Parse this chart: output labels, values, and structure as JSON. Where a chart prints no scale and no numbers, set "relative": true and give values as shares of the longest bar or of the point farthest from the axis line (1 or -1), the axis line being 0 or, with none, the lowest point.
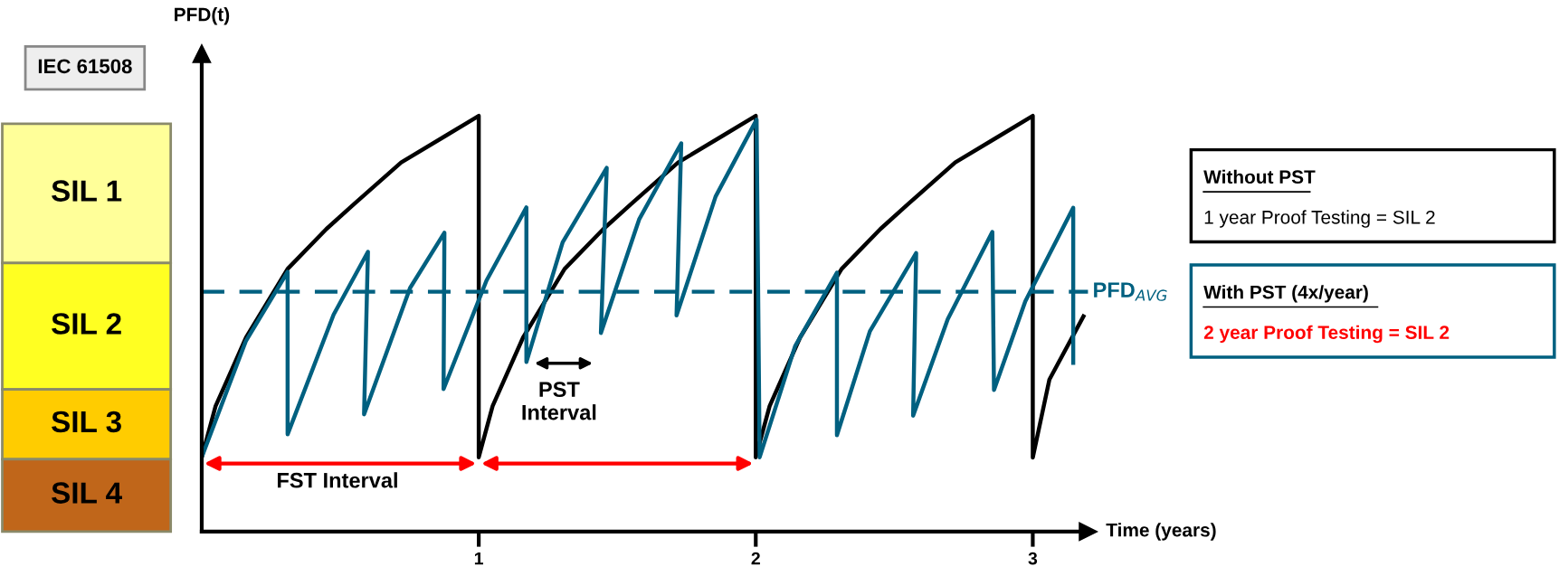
{
  "chart_data": {
    "type": "line",
    "relative": true,
    "ylabel": "PFD(t)",
    "xlabel": "Time (years)",
    "xlim": [
      0,
      3.2
    ],
    "xticks": [
      1,
      2,
      3
    ],
    "tick_labels": "x",
    "grid": false,
    "marker": "none",
    "line_style": "solid",
    "series": [
      {
        "color": "#000000",
        "x": [
          0,
          0.05,
          0.16,
          0.31,
          0.45,
          0.55,
          0.72,
          0.88,
          1,
          1,
          1.05,
          1.16,
          1.31,
          1.45,
          1.55,
          1.72,
          1.88,
          2,
          2,
          2.05,
          2.16,
          2.31,
          2.45,
          2.55,
          2.72,
          2.88,
          3,
          3,
          3.06,
          3.183
        ],
        "values": [
          0.179,
          0.302,
          0.467,
          0.632,
          0.728,
          0.788,
          0.888,
          0.952,
          1.0,
          0.179,
          0.302,
          0.467,
          0.632,
          0.728,
          0.788,
          0.888,
          0.952,
          1.0,
          0.179,
          0.302,
          0.467,
          0.632,
          0.728,
          0.788,
          0.888,
          0.952,
          1.0,
          0.178,
          0.366,
          0.518
        ]
      },
      {
        "color": "#006080",
        "x": [
          0,
          0.159,
          0.31,
          0.31,
          0.476,
          0.6,
          0.586,
          0.752,
          0.876,
          0.873,
          1.028,
          1.172,
          1.172,
          1.303,
          1.462,
          1.441,
          1.579,
          1.731,
          1.714,
          1.855,
          2.003,
          2.014,
          2.142,
          2.293,
          2.293,
          2.412,
          2.579,
          2.568,
          2.693,
          2.854,
          2.86,
          2.973,
          3.146,
          3.146
        ],
        "values": [
          0.179,
          0.458,
          0.625,
          0.234,
          0.522,
          0.673,
          0.282,
          0.586,
          0.719,
          0.343,
          0.604,
          0.78,
          0.408,
          0.696,
          0.875,
          0.478,
          0.751,
          0.934,
          0.52,
          0.806,
          0.991,
          0.179,
          0.446,
          0.623,
          0.232,
          0.482,
          0.67,
          0.279,
          0.511,
          0.721,
          0.341,
          0.554,
          0.779,
          0.406
        ]
      }
    ],
    "ref_lines": [
      {
        "axis": "y",
        "value": 0.577,
        "label": "PFD$_{AVG}$",
        "color": "#006080",
        "line_style": "dashed"
      }
    ],
    "annotations": [
      "SIL 1",
      "SIL 2",
      "SIL 3",
      "SIL 4",
      "IEC 61508",
      "Without PST",
      "1 year Proof Testing = SIL 2",
      "With PST (4x/year)",
      "2 year Proof Testing = SIL 2",
      "FST Interval",
      "PST\nInterval"
    ]
  }
}
